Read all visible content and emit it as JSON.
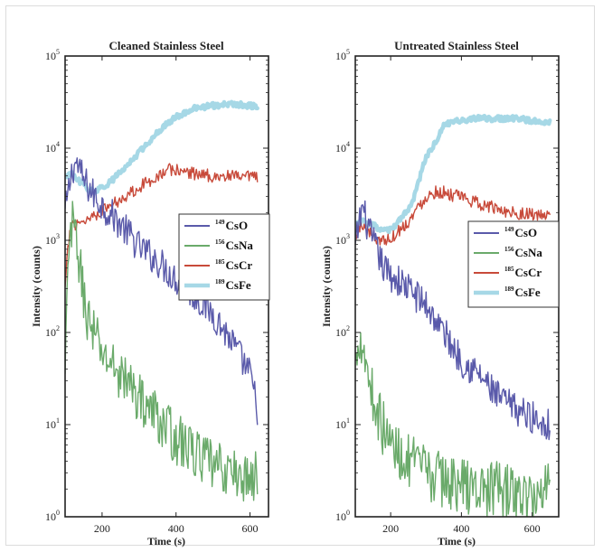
{
  "chart_data": [
    {
      "type": "line",
      "title": "Cleaned Stainless Steel",
      "xlabel": "Time (s)",
      "ylabel": "Intensity (counts)",
      "yscale": "log",
      "xlim": [
        100,
        650
      ],
      "ylim": [
        1,
        100000
      ],
      "xticks": [
        {
          "value": 200,
          "label": "200"
        },
        {
          "value": 400,
          "label": "400"
        },
        {
          "value": 600,
          "label": "600"
        }
      ],
      "yticks": [
        {
          "value": 1,
          "base": "10",
          "exp": "0"
        },
        {
          "value": 10,
          "base": "10",
          "exp": "1"
        },
        {
          "value": 100,
          "base": "10",
          "exp": "2"
        },
        {
          "value": 1000,
          "base": "10",
          "exp": "3"
        },
        {
          "value": 10000,
          "base": "10",
          "exp": "4"
        },
        {
          "value": 100000,
          "base": "10",
          "exp": "5"
        }
      ],
      "legend_position": "center-right",
      "series": [
        {
          "name": "CsO",
          "mass": "149",
          "color": "#5a5aaa",
          "noise": 0.18,
          "x": [
            100,
            110,
            120,
            130,
            150,
            175,
            200,
            250,
            300,
            350,
            400,
            450,
            500,
            550,
            600,
            620
          ],
          "y": [
            2000,
            3500,
            6000,
            7000,
            4500,
            3200,
            2400,
            1500,
            850,
            600,
            380,
            250,
            160,
            80,
            35,
            15
          ]
        },
        {
          "name": "CsNa",
          "mass": "156",
          "color": "#6aaa6a",
          "noise": 0.28,
          "x": [
            100,
            105,
            112,
            120,
            130,
            145,
            160,
            180,
            200,
            250,
            300,
            350,
            400,
            450,
            500,
            550,
            600,
            620
          ],
          "y": [
            30,
            200,
            1000,
            1400,
            1100,
            350,
            150,
            90,
            60,
            35,
            20,
            12,
            7,
            5,
            3.5,
            3,
            2.5,
            3
          ]
        },
        {
          "name": "CsCr",
          "mass": "185",
          "color": "#c84a3a",
          "noise": 0.07,
          "x": [
            100,
            108,
            115,
            125,
            140,
            160,
            180,
            200,
            250,
            300,
            350,
            380,
            400,
            450,
            500,
            550,
            600,
            620
          ],
          "y": [
            300,
            800,
            1500,
            1500,
            1600,
            1700,
            1900,
            2100,
            2800,
            3800,
            5000,
            5800,
            5800,
            5300,
            5000,
            4900,
            4800,
            4800
          ]
        },
        {
          "name": "CsFe",
          "mass": "189",
          "color": "#a6d8e6",
          "noise": 0.03,
          "x": [
            100,
            120,
            140,
            160,
            180,
            200,
            230,
            260,
            300,
            350,
            400,
            450,
            500,
            550,
            600,
            620
          ],
          "y": [
            5000,
            5200,
            4300,
            3600,
            3400,
            3700,
            4600,
            6000,
            9000,
            15000,
            22000,
            27000,
            29000,
            30000,
            29000,
            28000
          ]
        }
      ]
    },
    {
      "type": "line",
      "title": "Untreated Stainless Steel",
      "xlabel": "Time (s)",
      "ylabel": "Intensity (counts)",
      "yscale": "log",
      "xlim": [
        100,
        675
      ],
      "ylim": [
        1,
        100000
      ],
      "xticks": [
        {
          "value": 200,
          "label": "200"
        },
        {
          "value": 400,
          "label": "400"
        },
        {
          "value": 600,
          "label": "600"
        }
      ],
      "yticks": [
        {
          "value": 1,
          "base": "10",
          "exp": "0"
        },
        {
          "value": 10,
          "base": "10",
          "exp": "1"
        },
        {
          "value": 100,
          "base": "10",
          "exp": "2"
        },
        {
          "value": 1000,
          "base": "10",
          "exp": "3"
        },
        {
          "value": 10000,
          "base": "10",
          "exp": "4"
        },
        {
          "value": 100000,
          "base": "10",
          "exp": "5"
        }
      ],
      "legend_position": "center-right",
      "series": [
        {
          "name": "CsO",
          "mass": "149",
          "color": "#5a5aaa",
          "noise": 0.18,
          "x": [
            100,
            110,
            120,
            140,
            160,
            180,
            200,
            250,
            300,
            350,
            400,
            450,
            500,
            550,
            600,
            650
          ],
          "y": [
            800,
            1500,
            2300,
            1200,
            800,
            500,
            420,
            300,
            200,
            100,
            50,
            35,
            20,
            15,
            12,
            10
          ]
        },
        {
          "name": "CsNa",
          "mass": "156",
          "color": "#6aaa6a",
          "noise": 0.3,
          "x": [
            100,
            105,
            112,
            120,
            130,
            150,
            175,
            200,
            250,
            300,
            350,
            400,
            450,
            500,
            550,
            600,
            650
          ],
          "y": [
            40,
            70,
            100,
            80,
            50,
            20,
            10,
            6,
            4,
            3,
            2.5,
            2.2,
            2,
            2,
            1.8,
            1.5,
            2.5
          ]
        },
        {
          "name": "CsCr",
          "mass": "185",
          "color": "#c84a3a",
          "noise": 0.07,
          "x": [
            100,
            110,
            120,
            140,
            160,
            180,
            200,
            250,
            300,
            330,
            350,
            400,
            450,
            500,
            550,
            600,
            650
          ],
          "y": [
            1000,
            1300,
            1500,
            1200,
            1050,
            1000,
            1050,
            1600,
            3000,
            3400,
            3300,
            2900,
            2500,
            2200,
            2000,
            1900,
            1800
          ]
        },
        {
          "name": "CsFe",
          "mass": "189",
          "color": "#a6d8e6",
          "noise": 0.03,
          "x": [
            100,
            120,
            140,
            160,
            180,
            200,
            230,
            260,
            300,
            330,
            350,
            400,
            450,
            500,
            550,
            600,
            650
          ],
          "y": [
            1500,
            1600,
            1500,
            1400,
            1250,
            1300,
            1700,
            2500,
            8000,
            12000,
            18000,
            20000,
            21000,
            21000,
            21000,
            20000,
            19000
          ]
        }
      ]
    }
  ]
}
